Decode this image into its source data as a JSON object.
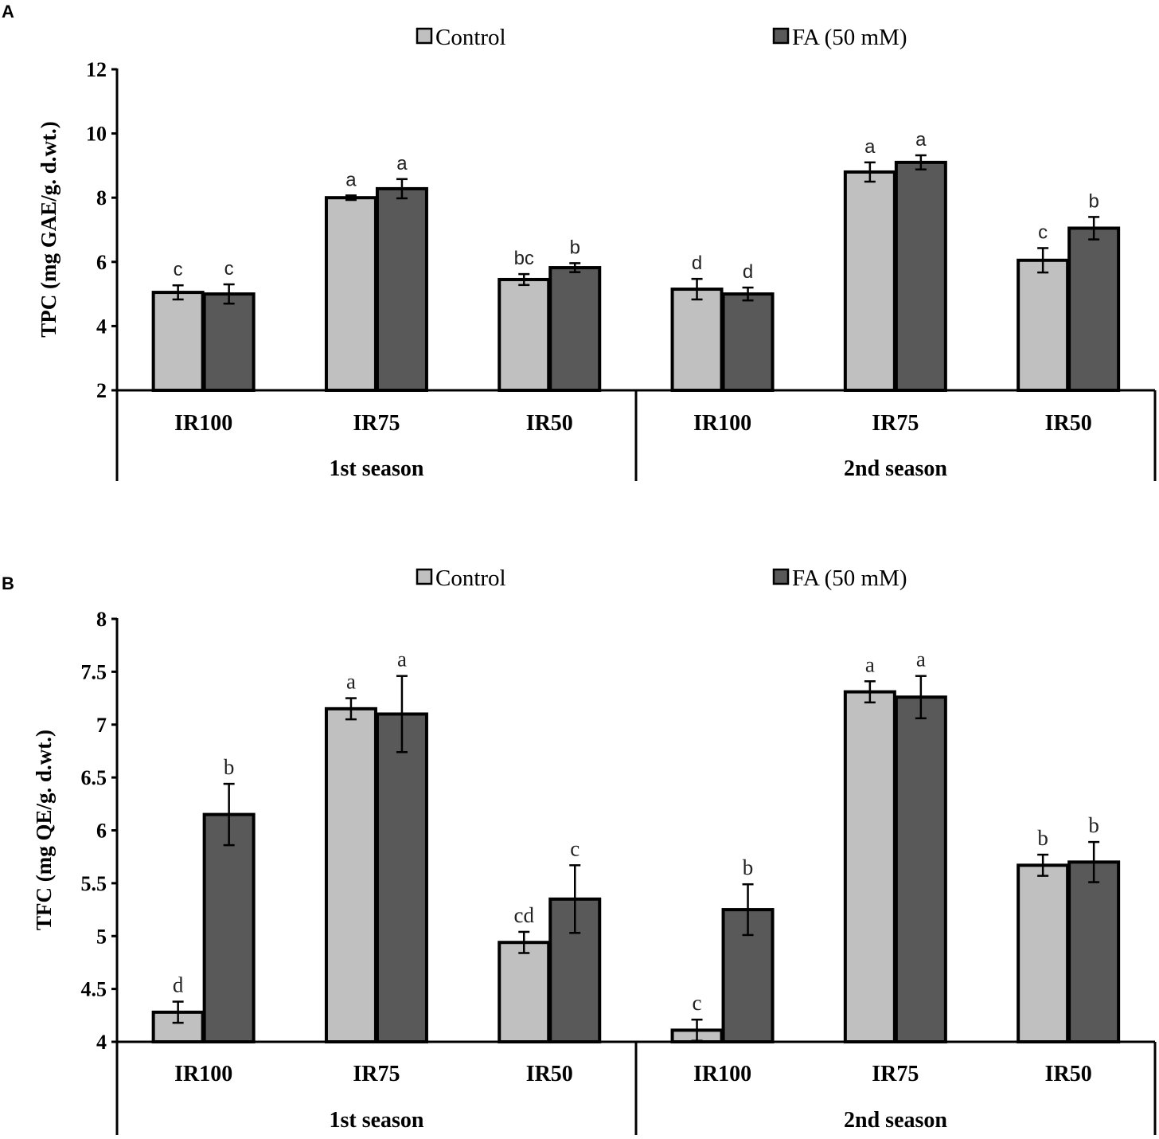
{
  "colors": {
    "control": "#c0c0c0",
    "fa": "#595959",
    "stroke": "#000000"
  },
  "chart_data": [
    {
      "panel": "A",
      "type": "bar",
      "legend": [
        "Control",
        "FA (50 mM)"
      ],
      "ylabel": "TPC (mg GAE/g. d.wt.)",
      "ylim": [
        2,
        12
      ],
      "yticks": [
        "2",
        "4",
        "6",
        "8",
        "10",
        "12"
      ],
      "categories": [
        "IR100",
        "IR75",
        "IR50",
        "IR100",
        "IR75",
        "IR50"
      ],
      "groups": [
        "1st season",
        "2nd season"
      ],
      "series": [
        {
          "name": "Control",
          "values": [
            5.05,
            8.0,
            5.45,
            5.15,
            8.8,
            6.05
          ],
          "errors": [
            0.22,
            0.07,
            0.17,
            0.32,
            0.3,
            0.38
          ],
          "letters": [
            "c",
            "a",
            "bc",
            "d",
            "a",
            "c"
          ]
        },
        {
          "name": "FA (50 mM)",
          "values": [
            5.0,
            8.28,
            5.82,
            5.0,
            9.1,
            7.05
          ],
          "errors": [
            0.3,
            0.3,
            0.14,
            0.2,
            0.22,
            0.35
          ],
          "letters": [
            "c",
            "a",
            "b",
            "d",
            "a",
            "b"
          ]
        }
      ]
    },
    {
      "panel": "B",
      "type": "bar",
      "legend": [
        "Control",
        "FA (50 mM)"
      ],
      "ylabel": "TFC (mg QE/g. d.wt.)",
      "ylim": [
        4,
        8
      ],
      "yticks": [
        "4",
        "4.5",
        "5",
        "5.5",
        "6",
        "6.5",
        "7",
        "7.5",
        "8"
      ],
      "categories": [
        "IR100",
        "IR75",
        "IR50",
        "IR100",
        "IR75",
        "IR50"
      ],
      "groups": [
        "1st season",
        "2nd season"
      ],
      "series": [
        {
          "name": "Control",
          "values": [
            4.28,
            7.15,
            4.94,
            4.11,
            7.31,
            5.67
          ],
          "errors": [
            0.1,
            0.1,
            0.1,
            0.1,
            0.1,
            0.1
          ],
          "letters": [
            "d",
            "a",
            "cd",
            "c",
            "a",
            "b"
          ]
        },
        {
          "name": "FA (50 mM)",
          "values": [
            6.15,
            7.1,
            5.35,
            5.25,
            7.26,
            5.7
          ],
          "errors": [
            0.29,
            0.36,
            0.32,
            0.24,
            0.2,
            0.19
          ],
          "letters": [
            "b",
            "a",
            "c",
            "b",
            "a",
            "b"
          ]
        }
      ]
    }
  ]
}
